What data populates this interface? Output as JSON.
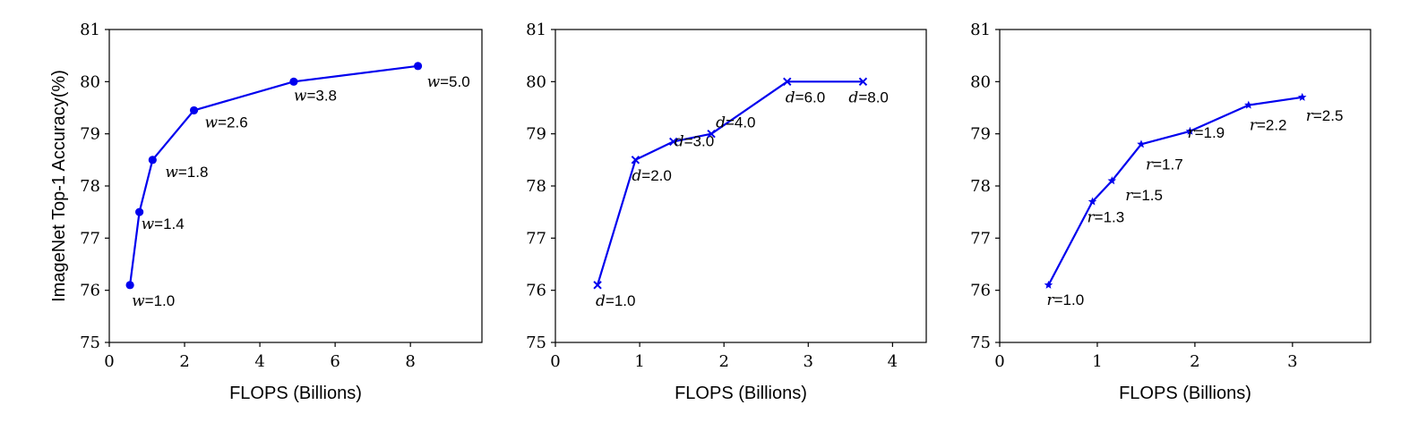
{
  "colors": {
    "series": "#0000ee",
    "axis": "#000000"
  },
  "chart_data": [
    {
      "type": "line",
      "marker": "circle",
      "xlabel": "FLOPS (Billions)",
      "ylabel": "ImageNet Top-1 Accuracy(%)",
      "xlim": [
        0,
        9.9
      ],
      "ylim": [
        75,
        81
      ],
      "xticks": [
        "0",
        "2",
        "4",
        "6",
        "8"
      ],
      "yticks": [
        "75",
        "76",
        "77",
        "78",
        "79",
        "80",
        "81"
      ],
      "x": [
        0.55,
        0.8,
        1.15,
        2.25,
        4.9,
        8.2
      ],
      "y": [
        76.1,
        77.5,
        78.5,
        79.45,
        80.0,
        80.3
      ],
      "labels": [
        {
          "var": "w",
          "val": "=1.0"
        },
        {
          "var": "w",
          "val": "=1.4"
        },
        {
          "var": "w",
          "val": "=1.8"
        },
        {
          "var": "w",
          "val": "=2.6"
        },
        {
          "var": "w",
          "val": "=3.8"
        },
        {
          "var": "w",
          "val": "=5.0"
        }
      ]
    },
    {
      "type": "line",
      "marker": "x",
      "xlabel": "FLOPS (Billions)",
      "ylabel": "",
      "xlim": [
        0,
        4.4
      ],
      "ylim": [
        75,
        81
      ],
      "xticks": [
        "0",
        "1",
        "2",
        "3",
        "4"
      ],
      "yticks": [
        "75",
        "76",
        "77",
        "78",
        "79",
        "80",
        "81"
      ],
      "x": [
        0.5,
        0.95,
        1.4,
        1.85,
        2.75,
        3.65
      ],
      "y": [
        76.1,
        78.5,
        78.85,
        79.0,
        80.0,
        80.0
      ],
      "labels": [
        {
          "var": "d",
          "val": "=1.0"
        },
        {
          "var": "d",
          "val": "=2.0"
        },
        {
          "var": "d",
          "val": "=3.0"
        },
        {
          "var": "d",
          "val": "=4.0"
        },
        {
          "var": "d",
          "val": "=6.0"
        },
        {
          "var": "d",
          "val": "=8.0"
        }
      ]
    },
    {
      "type": "line",
      "marker": "star",
      "xlabel": "FLOPS (Billions)",
      "ylabel": "",
      "xlim": [
        0,
        3.8
      ],
      "ylim": [
        75,
        81
      ],
      "xticks": [
        "0",
        "1",
        "2",
        "3"
      ],
      "yticks": [
        "75",
        "76",
        "77",
        "78",
        "79",
        "80",
        "81"
      ],
      "x": [
        0.5,
        0.95,
        1.15,
        1.45,
        1.95,
        2.55,
        3.1
      ],
      "y": [
        76.1,
        77.7,
        78.1,
        78.8,
        79.05,
        79.55,
        79.7
      ],
      "labels": [
        {
          "var": "r",
          "val": "=1.0"
        },
        {
          "var": "r",
          "val": "=1.3"
        },
        {
          "var": "r",
          "val": "=1.5"
        },
        {
          "var": "r",
          "val": "=1.7"
        },
        {
          "var": "r",
          "val": "=1.9"
        },
        {
          "var": "r",
          "val": "=2.2"
        },
        {
          "var": "r",
          "val": "=2.5"
        }
      ]
    }
  ]
}
